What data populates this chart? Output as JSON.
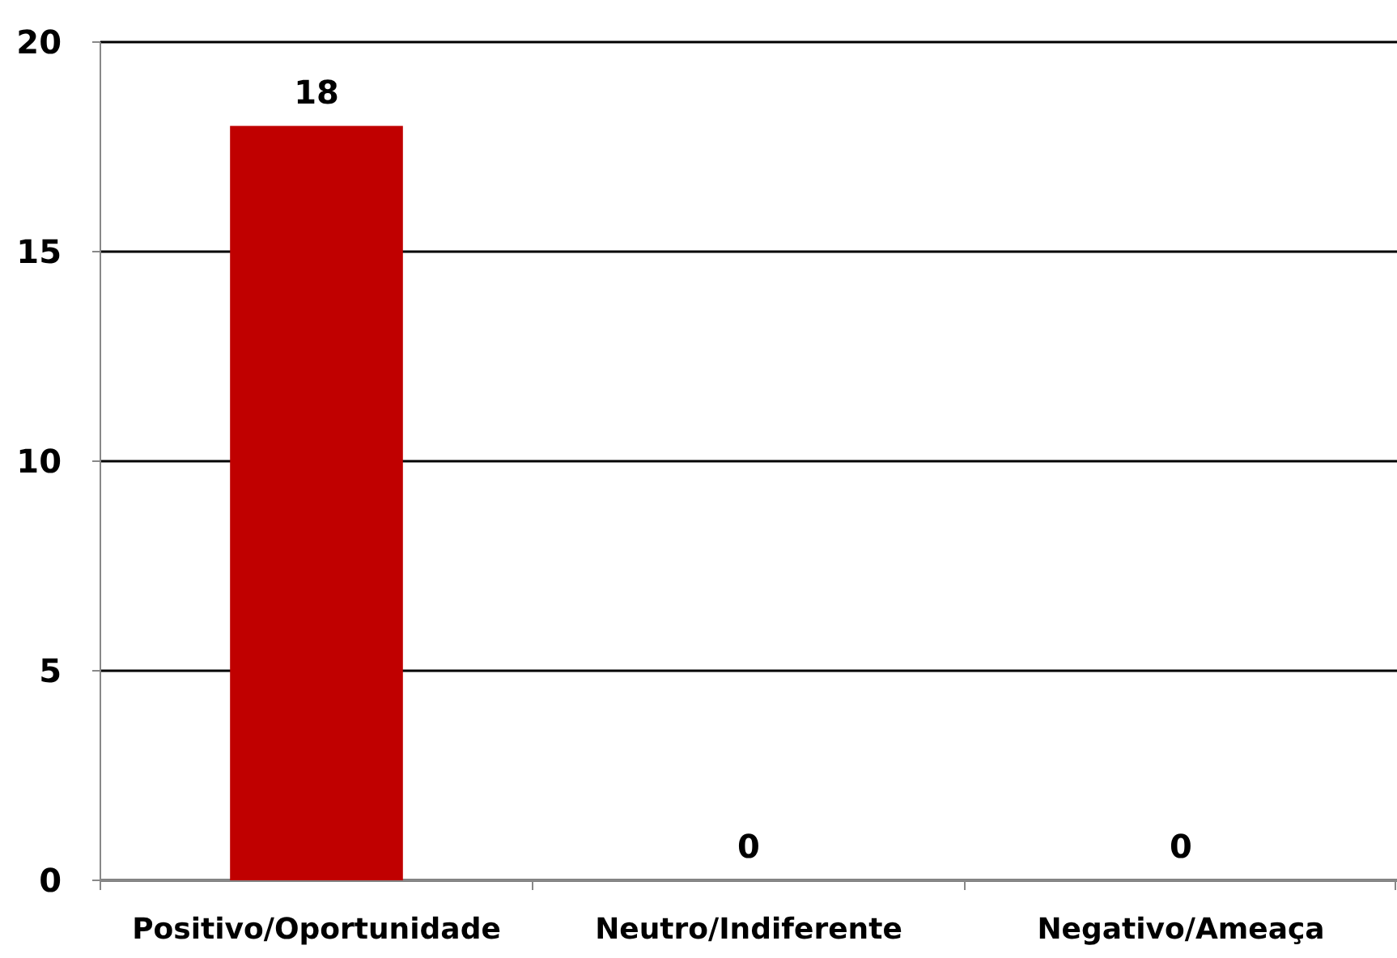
{
  "chart_data": {
    "type": "bar",
    "categories": [
      "Positivo/Oportunidade",
      "Neutro/Indiferente",
      "Negativo/Ameaça"
    ],
    "values": [
      18,
      0,
      0
    ],
    "color": "#c00000",
    "ylim": [
      0,
      20
    ],
    "yticks": [
      0,
      5,
      10,
      15,
      20
    ],
    "grid": "y",
    "data_labels": true
  }
}
